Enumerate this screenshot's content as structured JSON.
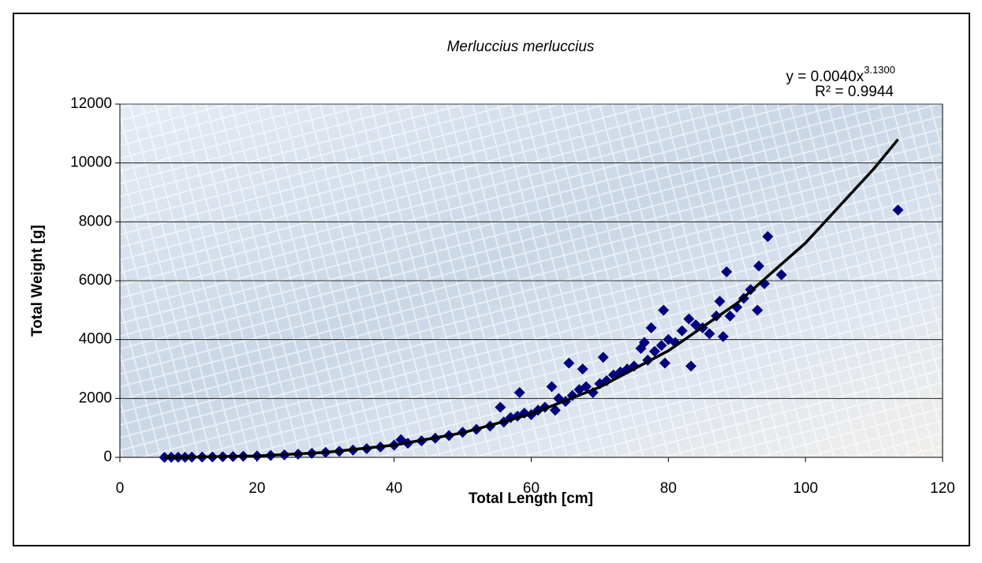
{
  "chart_data": {
    "type": "scatter",
    "title": "Merluccius merluccius",
    "x_label": "Total Length [cm]",
    "y_label": "Total Weight [g]",
    "equation": "y = 0.0040x",
    "equation_exponent": "3.1300",
    "r_squared": "R² = 0.9944",
    "xlim": [
      0,
      120
    ],
    "ylim": [
      0,
      12000
    ],
    "xticks": [
      0,
      20,
      40,
      60,
      80,
      100,
      120
    ],
    "yticks": [
      0,
      2000,
      4000,
      6000,
      8000,
      10000,
      12000
    ],
    "grid": true,
    "series": [
      {
        "color": "#00007f",
        "x": [
          6.5,
          7.5,
          8.5,
          9.5,
          10.5,
          12,
          13.5,
          15,
          16.5,
          18,
          20,
          22,
          24,
          26,
          28,
          30,
          32,
          34,
          36,
          38,
          40,
          41,
          42,
          44,
          46,
          48,
          50,
          52,
          54,
          55.5,
          56,
          57,
          58,
          58.3,
          59,
          60,
          61,
          62,
          63,
          63.5,
          64,
          65,
          65.5,
          66,
          67,
          67.5,
          68,
          69,
          70,
          70.5,
          71,
          72,
          73,
          74,
          75,
          76,
          76.5,
          77,
          77.5,
          78,
          79,
          79.3,
          79.5,
          80,
          81,
          82,
          83,
          83.3,
          84,
          85,
          86,
          87,
          87.5,
          88,
          88.5,
          89,
          90,
          91,
          92,
          93,
          93.2,
          94,
          94.5,
          96.5,
          113.5
        ],
        "values": [
          1,
          2,
          4,
          5,
          6,
          9,
          14,
          20,
          27,
          36,
          47,
          63,
          83,
          108,
          136,
          168,
          205,
          248,
          295,
          350,
          414,
          600,
          480,
          560,
          650,
          740,
          850,
          950,
          1060,
          1700,
          1200,
          1350,
          1400,
          2200,
          1500,
          1450,
          1600,
          1700,
          2400,
          1600,
          2000,
          1900,
          3200,
          2100,
          2300,
          3000,
          2400,
          2200,
          2500,
          3400,
          2600,
          2800,
          2900,
          3000,
          3100,
          3700,
          3900,
          3300,
          4400,
          3600,
          3800,
          5000,
          3200,
          4000,
          3900,
          4300,
          4700,
          3100,
          4500,
          4400,
          4200,
          4800,
          5300,
          4100,
          6300,
          4800,
          5100,
          5400,
          5700,
          5000,
          6500,
          5900,
          7500,
          6200,
          8400
        ]
      }
    ],
    "trendline": {
      "color": "#000000",
      "x": [
        6.5,
        10,
        20,
        30,
        40,
        50,
        60,
        70,
        80,
        90,
        100,
        110,
        113.5
      ],
      "values": [
        1.4,
        5.4,
        47,
        168,
        414,
        832,
        1472,
        2385,
        3620,
        5230,
        7280,
        9810,
        10800
      ]
    }
  }
}
